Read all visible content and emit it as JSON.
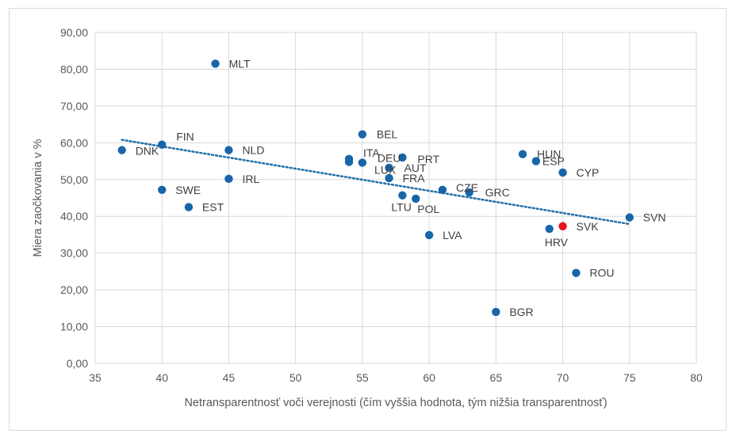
{
  "chart_data": {
    "type": "scatter",
    "title": "",
    "xlabel": "Netransparentnosť voči verejnosti (čím vyššia hodnota, tým nižšia transparentnosť)",
    "ylabel": "Miera zaočkovania v %",
    "xlim": [
      35,
      80
    ],
    "ylim": [
      0,
      90
    ],
    "xticks": [
      35,
      40,
      45,
      50,
      55,
      60,
      65,
      70,
      75,
      80
    ],
    "yticks": [
      "0,00",
      "10,00",
      "20,00",
      "30,00",
      "40,00",
      "50,00",
      "60,00",
      "70,00",
      "80,00",
      "90,00"
    ],
    "ytick_values": [
      0,
      10,
      20,
      30,
      40,
      50,
      60,
      70,
      80,
      90
    ],
    "grid": true,
    "legend": "none",
    "colors": {
      "point": "#1865AA",
      "highlight": "#E8141B",
      "trendline": "#1F6FA8",
      "label": "#404040"
    },
    "points": [
      {
        "label": "DNK",
        "x": 37,
        "y": 58.0
      },
      {
        "label": "FIN",
        "x": 40,
        "y": 59.5
      },
      {
        "label": "SWE",
        "x": 40,
        "y": 47.2
      },
      {
        "label": "EST",
        "x": 42,
        "y": 42.5
      },
      {
        "label": "MLT",
        "x": 44,
        "y": 81.5
      },
      {
        "label": "NLD",
        "x": 45,
        "y": 58.0
      },
      {
        "label": "IRL",
        "x": 45,
        "y": 50.2
      },
      {
        "label": "ITA",
        "x": 54,
        "y": 55.6
      },
      {
        "label": "LUX",
        "x": 54,
        "y": 54.8
      },
      {
        "label": "BEL",
        "x": 55,
        "y": 62.3
      },
      {
        "label": "DEU",
        "x": 55,
        "y": 54.6
      },
      {
        "label": "AUT",
        "x": 57,
        "y": 53.2
      },
      {
        "label": "FRA",
        "x": 57,
        "y": 50.4
      },
      {
        "label": "PRT",
        "x": 58,
        "y": 56.0
      },
      {
        "label": "LTU",
        "x": 58,
        "y": 45.7
      },
      {
        "label": "POL",
        "x": 59,
        "y": 44.8
      },
      {
        "label": "LVA",
        "x": 60,
        "y": 34.9
      },
      {
        "label": "CZE",
        "x": 61,
        "y": 47.2
      },
      {
        "label": "GRC",
        "x": 63,
        "y": 46.5
      },
      {
        "label": "BGR",
        "x": 65,
        "y": 14.0
      },
      {
        "label": "HUN",
        "x": 67,
        "y": 56.9
      },
      {
        "label": "ESP",
        "x": 68,
        "y": 55.0
      },
      {
        "label": "HRV",
        "x": 69,
        "y": 36.6
      },
      {
        "label": "CYP",
        "x": 70,
        "y": 51.9
      },
      {
        "label": "SVK",
        "x": 70,
        "y": 37.3,
        "highlight": true
      },
      {
        "label": "ROU",
        "x": 71,
        "y": 24.6
      },
      {
        "label": "SVN",
        "x": 75,
        "y": 39.7
      }
    ],
    "trendline": {
      "type": "linear",
      "style": "dotted",
      "x_start": 37,
      "y_start": 60.8,
      "x_end": 75,
      "y_end": 37.9
    }
  }
}
